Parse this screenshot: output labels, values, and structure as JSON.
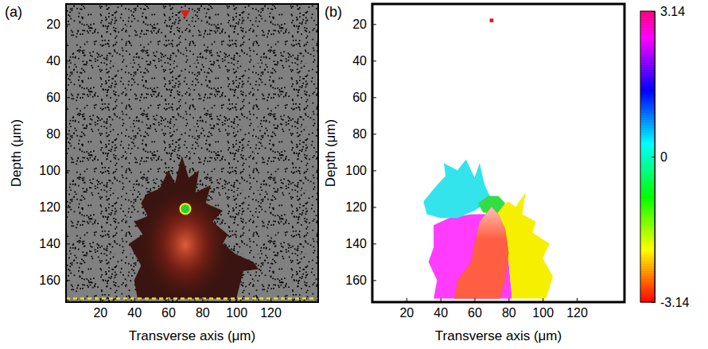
{
  "chart_data": [
    {
      "type": "image",
      "title": "(a)",
      "xlabel": "Transverse axis (μm)",
      "ylabel": "Depth (μm)",
      "xlim": [
        0,
        148
      ],
      "xticks": [
        20,
        40,
        60,
        80,
        100,
        120
      ],
      "ylim": [
        172,
        9
      ],
      "yticks": [
        20,
        40,
        60,
        80,
        100,
        120,
        140,
        160
      ],
      "series": [
        {
          "type": "area",
          "color": "#3a1410",
          "x": [
            47,
            55,
            60,
            64,
            68,
            72,
            78,
            76,
            85,
            82,
            92,
            86,
            95,
            92,
            100,
            110,
            113,
            104,
            100,
            42,
            40,
            44,
            37,
            45,
            40,
            48,
            44
          ],
          "values": [
            113,
            110,
            100,
            107,
            92,
            104,
            100,
            112,
            108,
            118,
            122,
            128,
            135,
            140,
            146,
            150,
            154,
            155,
            170,
            170,
            160,
            152,
            140,
            135,
            128,
            125,
            118
          ]
        },
        {
          "type": "scatter",
          "marker": "circle",
          "color": "#2ecc40",
          "x": [
            70
          ],
          "values": [
            121
          ]
        },
        {
          "type": "scatter",
          "marker": "triangle",
          "color": "#e01b1b",
          "x": [
            70
          ],
          "values": [
            14
          ]
        },
        {
          "type": "line",
          "line_style": "dashed",
          "color": "#f0e020",
          "x": [
            0,
            148
          ],
          "values": [
            170,
            170
          ]
        }
      ]
    },
    {
      "type": "image",
      "title": "(b)",
      "xlabel": "Transverse axis (μm)",
      "ylabel": "Depth (μm)",
      "xlim": [
        0,
        148
      ],
      "xticks": [
        20,
        40,
        60,
        80,
        100,
        120
      ],
      "ylim": [
        172,
        9
      ],
      "yticks": [
        20,
        40,
        60,
        80,
        100,
        120,
        140,
        160
      ],
      "series": [
        {
          "type": "area",
          "color": "#ff3cff",
          "x": [
            36,
            45,
            58,
            66,
            72,
            76,
            80,
            82,
            36,
            38,
            33,
            36
          ],
          "values": [
            130,
            126,
            124,
            124,
            126,
            135,
            150,
            170,
            170,
            160,
            150,
            142
          ]
        },
        {
          "type": "area",
          "color": "#f5f000",
          "x": [
            72,
            80,
            84,
            90,
            88,
            96,
            94,
            104,
            100,
            106,
            102,
            82,
            80,
            76
          ],
          "values": [
            122,
            117,
            120,
            112,
            124,
            128,
            134,
            140,
            148,
            158,
            170,
            170,
            150,
            135
          ]
        },
        {
          "type": "area",
          "color": "#33e4ec",
          "x": [
            30,
            38,
            43,
            42,
            50,
            55,
            60,
            63,
            66,
            70,
            60,
            50,
            40,
            32
          ],
          "values": [
            117,
            108,
            103,
            96,
            100,
            94,
            104,
            96,
            108,
            116,
            122,
            126,
            126,
            124
          ]
        },
        {
          "type": "area",
          "color": "#33dd44",
          "x": [
            62,
            68,
            74,
            78,
            73,
            65
          ],
          "values": [
            118,
            114,
            114,
            118,
            124,
            123
          ]
        },
        {
          "type": "area",
          "color": "#ff2a1a",
          "x": [
            70,
            74,
            78,
            80,
            78,
            75,
            48,
            50,
            58,
            60,
            63
          ],
          "values": [
            120,
            124,
            132,
            145,
            160,
            170,
            170,
            160,
            150,
            140,
            128
          ]
        },
        {
          "type": "scatter",
          "marker": "square",
          "color": "#e01b1b",
          "x": [
            70
          ],
          "values": [
            18
          ]
        }
      ],
      "colorbar": {
        "lim": [
          -3.14,
          3.14
        ],
        "ticks": [
          -3.14,
          0,
          3.14
        ]
      }
    }
  ]
}
